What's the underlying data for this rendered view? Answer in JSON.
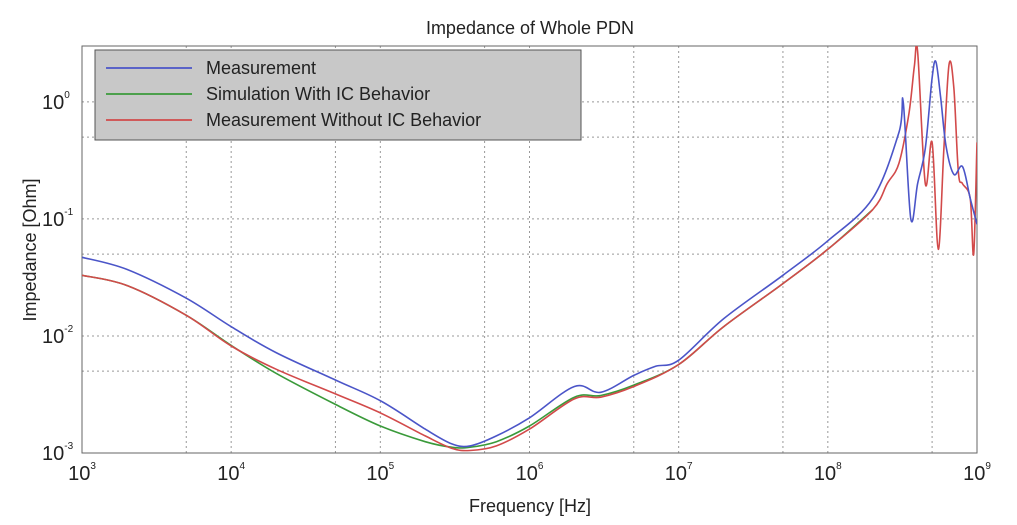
{
  "chart_data": {
    "type": "line",
    "title": "Impedance of Whole PDN",
    "xlabel": "Frequency [Hz]",
    "ylabel": "Impedance [Ohm]",
    "xscale": "log",
    "yscale": "log",
    "xlim": [
      1000,
      1000000000
    ],
    "ylim": [
      0.001,
      3
    ],
    "grid": true,
    "legend_position": "top-left",
    "x_ticks": [
      {
        "base": "10",
        "exp": "3"
      },
      {
        "base": "10",
        "exp": "4"
      },
      {
        "base": "10",
        "exp": "5"
      },
      {
        "base": "10",
        "exp": "6"
      },
      {
        "base": "10",
        "exp": "7"
      },
      {
        "base": "10",
        "exp": "8"
      },
      {
        "base": "10",
        "exp": "9"
      }
    ],
    "y_ticks": [
      {
        "base": "10",
        "exp": "-3"
      },
      {
        "base": "10",
        "exp": "-2"
      },
      {
        "base": "10",
        "exp": "-1"
      },
      {
        "base": "10",
        "exp": "0"
      }
    ],
    "series": [
      {
        "name": "Measurement",
        "color": "#4b55c8",
        "x": [
          1000,
          2000,
          5000,
          10000,
          20000,
          50000,
          100000,
          200000,
          300000,
          400000,
          600000,
          1000000,
          2000000,
          3000000,
          5000000,
          7000000,
          10000000,
          20000000,
          50000000,
          100000000,
          200000000,
          300000000,
          320000000,
          360000000,
          400000000,
          450000000,
          500000000,
          530000000,
          570000000,
          620000000,
          700000000,
          800000000,
          900000000,
          1000000000
        ],
        "y": [
          0.047,
          0.037,
          0.021,
          0.012,
          0.0072,
          0.0042,
          0.0028,
          0.0016,
          0.0012,
          0.00115,
          0.0014,
          0.002,
          0.0037,
          0.0033,
          0.0046,
          0.0055,
          0.0062,
          0.014,
          0.033,
          0.065,
          0.15,
          0.55,
          1.0,
          0.1,
          0.2,
          0.4,
          1.6,
          2.2,
          1.1,
          0.42,
          0.24,
          0.28,
          0.15,
          0.09
        ]
      },
      {
        "name": "Simulation With IC Behavior",
        "color": "#3a9a3a",
        "x": [
          1000,
          2000,
          5000,
          10000,
          20000,
          50000,
          100000,
          200000,
          300000,
          400000,
          600000,
          1000000,
          2000000,
          3000000,
          5000000,
          10000000,
          20000000,
          50000000,
          100000000,
          200000000
        ],
        "y": [
          0.033,
          0.027,
          0.015,
          0.0083,
          0.0048,
          0.0026,
          0.0017,
          0.00125,
          0.00112,
          0.00112,
          0.00125,
          0.0017,
          0.003,
          0.0031,
          0.0038,
          0.0057,
          0.012,
          0.028,
          0.055,
          0.12
        ]
      },
      {
        "name": "Measurement Without IC Behavior",
        "color": "#d24a4a",
        "x": [
          1000,
          2000,
          5000,
          10000,
          20000,
          50000,
          100000,
          200000,
          300000,
          400000,
          600000,
          1000000,
          2000000,
          3000000,
          5000000,
          10000000,
          20000000,
          50000000,
          100000000,
          200000000,
          250000000,
          300000000,
          350000000,
          380000000,
          400000000,
          450000000,
          500000000,
          550000000,
          600000000,
          650000000,
          700000000,
          750000000,
          800000000,
          900000000,
          950000000,
          1000000000
        ],
        "y": [
          0.033,
          0.027,
          0.015,
          0.0082,
          0.0052,
          0.0032,
          0.0022,
          0.0014,
          0.0011,
          0.00105,
          0.00115,
          0.0016,
          0.0029,
          0.003,
          0.0037,
          0.0057,
          0.012,
          0.028,
          0.055,
          0.12,
          0.2,
          0.3,
          0.8,
          2.0,
          2.7,
          0.2,
          0.45,
          0.055,
          0.4,
          2.1,
          1.3,
          0.25,
          0.2,
          0.15,
          0.05,
          0.45
        ]
      }
    ]
  }
}
